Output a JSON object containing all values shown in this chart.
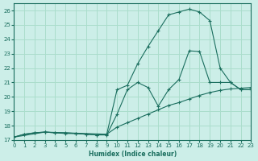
{
  "xlabel": "Humidex (Indice chaleur)",
  "bg_color": "#cceee8",
  "grid_color": "#aaddcc",
  "line_color": "#1a6e5e",
  "xlim": [
    0,
    23
  ],
  "ylim": [
    17.0,
    26.5
  ],
  "xticks": [
    0,
    1,
    2,
    3,
    4,
    5,
    6,
    7,
    8,
    9,
    10,
    11,
    12,
    13,
    14,
    15,
    16,
    17,
    18,
    19,
    20,
    21,
    22,
    23
  ],
  "yticks": [
    17,
    18,
    19,
    20,
    21,
    22,
    23,
    24,
    25,
    26
  ],
  "line1_x": [
    0,
    1,
    2,
    3,
    4,
    5,
    6,
    7,
    8,
    9,
    10,
    11,
    12,
    13,
    14,
    15,
    16,
    17,
    18,
    19,
    20,
    21,
    22,
    23
  ],
  "line1_y": [
    17.2,
    17.4,
    17.5,
    17.55,
    17.5,
    17.5,
    17.45,
    17.4,
    17.35,
    17.4,
    20.5,
    20.8,
    22.3,
    23.5,
    24.6,
    25.7,
    25.9,
    26.1,
    25.9,
    25.3,
    22.0,
    21.0,
    20.5,
    20.5
  ],
  "line2_x": [
    0,
    1,
    2,
    3,
    4,
    5,
    6,
    7,
    8,
    9,
    10,
    11,
    12,
    13,
    14,
    15,
    16,
    17,
    18,
    19,
    20,
    21,
    22,
    23
  ],
  "line2_y": [
    17.2,
    17.4,
    17.5,
    17.55,
    17.5,
    17.45,
    17.45,
    17.4,
    17.35,
    17.35,
    18.8,
    20.5,
    21.0,
    20.65,
    19.35,
    20.5,
    21.2,
    23.2,
    23.15,
    21.0,
    21.0,
    21.0,
    20.5,
    20.5
  ],
  "line3_x": [
    0,
    3,
    9,
    10,
    11,
    12,
    13,
    14,
    15,
    16,
    17,
    18,
    19,
    20,
    21,
    22,
    23
  ],
  "line3_y": [
    17.2,
    17.55,
    17.4,
    17.9,
    18.2,
    18.5,
    18.8,
    19.1,
    19.4,
    19.6,
    19.85,
    20.1,
    20.3,
    20.45,
    20.55,
    20.6,
    20.65
  ]
}
